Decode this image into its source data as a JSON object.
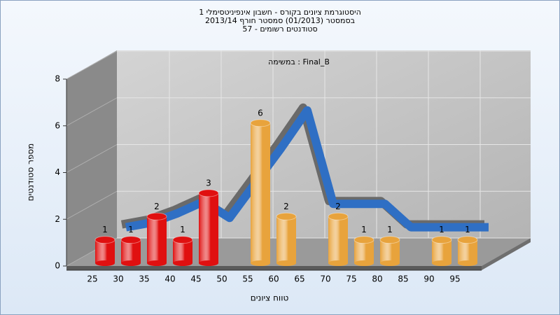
{
  "chart_data": {
    "type": "bar",
    "title_lines": [
      "היסטוגרמת ציונים בקורס - חשבון אינפיניטסימלי 1",
      "בסמסטר  (01/2013)  סמסטר חורף 2013/14",
      "סטודנטים רשומים - 57"
    ],
    "subtitle": "במשימה : Final_B",
    "x_label": "טווח ציונים",
    "y_label": "מספר סטודנטים",
    "categories": [
      "25",
      "30",
      "35",
      "40",
      "45",
      "50",
      "55",
      "60",
      "65",
      "70",
      "75",
      "80",
      "85",
      "90",
      "95"
    ],
    "values": [
      1,
      1,
      2,
      1,
      3,
      null,
      6,
      2,
      null,
      2,
      1,
      1,
      null,
      1,
      1
    ],
    "colors": [
      "#e01010",
      "#e01010",
      "#e01010",
      "#e01010",
      "#e01010",
      null,
      "#e8a33c",
      "#e8a33c",
      null,
      "#e8a33c",
      "#e8a33c",
      "#e8a33c",
      null,
      "#e8a33c",
      "#e8a33c"
    ],
    "curve": {
      "color": "#2f6fc4",
      "values": [
        1.6,
        1.8,
        2.2,
        2.7,
        2.0,
        3.5,
        5.0,
        6.6,
        2.6,
        2.6,
        2.6,
        1.6,
        1.6,
        1.6,
        1.6
      ]
    },
    "ylim": [
      0,
      8
    ],
    "yticks": [
      0,
      2,
      4,
      6,
      8
    ],
    "grid": true
  }
}
